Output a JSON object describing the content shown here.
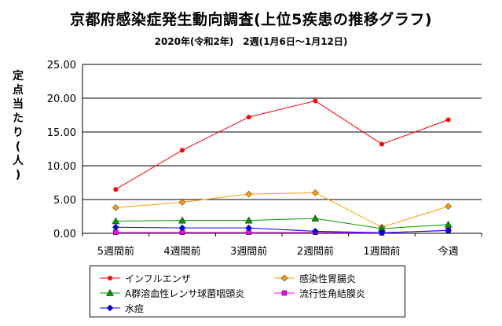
{
  "header": {
    "title": "京都府感染症発生動向調査(上位5疾患の推移グラフ)",
    "subtitle": "2020年(令和2年)　2週(1月6日～1月12日)"
  },
  "chart_data": {
    "type": "line",
    "title": "京都府感染症発生動向調査(上位5疾患の推移グラフ)",
    "subtitle": "2020年(令和2年)　2週(1月6日～1月12日)",
    "ylabel": "定点当たり(人)",
    "xlabel": "",
    "ylim": [
      0,
      25
    ],
    "yticks": [
      "0.00",
      "5.00",
      "10.00",
      "15.00",
      "20.00",
      "25.00"
    ],
    "grid": true,
    "legend_position": "bottom",
    "categories": [
      "5週間前",
      "4週間前",
      "3週間前",
      "2週間前",
      "1週間前",
      "今週"
    ],
    "series": [
      {
        "name": "インフルエンザ",
        "color": "#ff0000",
        "marker": "circle",
        "values": [
          6.5,
          12.3,
          17.2,
          19.6,
          13.2,
          16.8
        ]
      },
      {
        "name": "感染性胃腸炎",
        "color": "#ff9900",
        "marker": "diamond",
        "values": [
          3.8,
          4.6,
          5.8,
          6.0,
          0.9,
          4.0
        ]
      },
      {
        "name": "A群溶血性レンサ球菌咽頭炎",
        "color": "#009900",
        "marker": "triangle",
        "values": [
          1.8,
          1.9,
          1.9,
          2.2,
          0.7,
          1.3
        ]
      },
      {
        "name": "流行性角結膜炎",
        "color": "#ff00ff",
        "marker": "square",
        "values": [
          0.15,
          0.15,
          0.15,
          0.15,
          0.05,
          0.45
        ]
      },
      {
        "name": "水痘",
        "color": "#0000ff",
        "marker": "diamond",
        "values": [
          0.9,
          0.8,
          0.8,
          0.3,
          0.1,
          0.4
        ]
      }
    ]
  }
}
